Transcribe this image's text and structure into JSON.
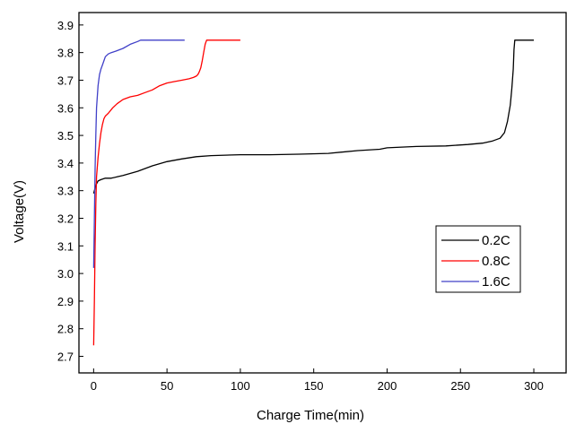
{
  "chart_data": {
    "type": "line",
    "title": "",
    "xlabel": "Charge Time(min)",
    "ylabel": "Voltage(V)",
    "xlim": [
      -10,
      322
    ],
    "ylim": [
      2.64,
      3.945
    ],
    "xticks": [
      0,
      50,
      100,
      150,
      200,
      250,
      300
    ],
    "yticks": [
      2.7,
      2.8,
      2.9,
      3.0,
      3.1,
      3.2,
      3.3,
      3.4,
      3.5,
      3.6,
      3.7,
      3.8,
      3.9
    ],
    "xtick_labels": [
      "0",
      "50",
      "100",
      "150",
      "200",
      "250",
      "300"
    ],
    "ytick_labels": [
      "2.7",
      "2.8",
      "2.9",
      "3.0",
      "3.1",
      "3.2",
      "3.3",
      "3.4",
      "3.5",
      "3.6",
      "3.7",
      "3.8",
      "3.9"
    ],
    "grid": false,
    "legend_position": "lower-right",
    "series": [
      {
        "name": "0.2C",
        "color": "#000000",
        "x": [
          0,
          1,
          2,
          3,
          5,
          8,
          12,
          16,
          20,
          30,
          40,
          50,
          60,
          70,
          80,
          100,
          120,
          140,
          160,
          180,
          195,
          200,
          220,
          240,
          255,
          265,
          272,
          277,
          280,
          282,
          284,
          285,
          286,
          286.5,
          287,
          300
        ],
        "y": [
          3.29,
          3.31,
          3.325,
          3.335,
          3.34,
          3.345,
          3.345,
          3.35,
          3.355,
          3.37,
          3.39,
          3.405,
          3.415,
          3.423,
          3.427,
          3.43,
          3.43,
          3.432,
          3.435,
          3.445,
          3.45,
          3.455,
          3.46,
          3.462,
          3.467,
          3.472,
          3.48,
          3.49,
          3.51,
          3.55,
          3.61,
          3.67,
          3.74,
          3.81,
          3.845,
          3.845
        ]
      },
      {
        "name": "0.8C",
        "color": "#ff0000",
        "x": [
          0,
          0.5,
          1,
          1.5,
          2,
          3,
          4,
          5,
          6,
          7,
          8,
          10,
          13,
          16,
          20,
          25,
          30,
          35,
          40,
          45,
          50,
          55,
          60,
          65,
          68,
          70,
          71,
          72,
          73,
          74,
          75,
          76,
          77,
          78,
          100
        ],
        "y": [
          2.74,
          2.9,
          3.1,
          3.25,
          3.35,
          3.42,
          3.47,
          3.51,
          3.54,
          3.56,
          3.57,
          3.58,
          3.6,
          3.615,
          3.63,
          3.64,
          3.645,
          3.655,
          3.665,
          3.68,
          3.69,
          3.695,
          3.7,
          3.705,
          3.71,
          3.715,
          3.72,
          3.73,
          3.745,
          3.77,
          3.8,
          3.83,
          3.845,
          3.845,
          3.845
        ]
      },
      {
        "name": "1.6C",
        "color": "#4040c8",
        "x": [
          0,
          0.5,
          1,
          1.5,
          2,
          3,
          4,
          5,
          6,
          7,
          8,
          10,
          12,
          15,
          20,
          25,
          30,
          32,
          34,
          36,
          62
        ],
        "y": [
          3.02,
          3.2,
          3.38,
          3.5,
          3.6,
          3.68,
          3.72,
          3.74,
          3.755,
          3.77,
          3.785,
          3.795,
          3.8,
          3.805,
          3.815,
          3.83,
          3.84,
          3.845,
          3.845,
          3.845,
          3.845
        ]
      }
    ]
  }
}
